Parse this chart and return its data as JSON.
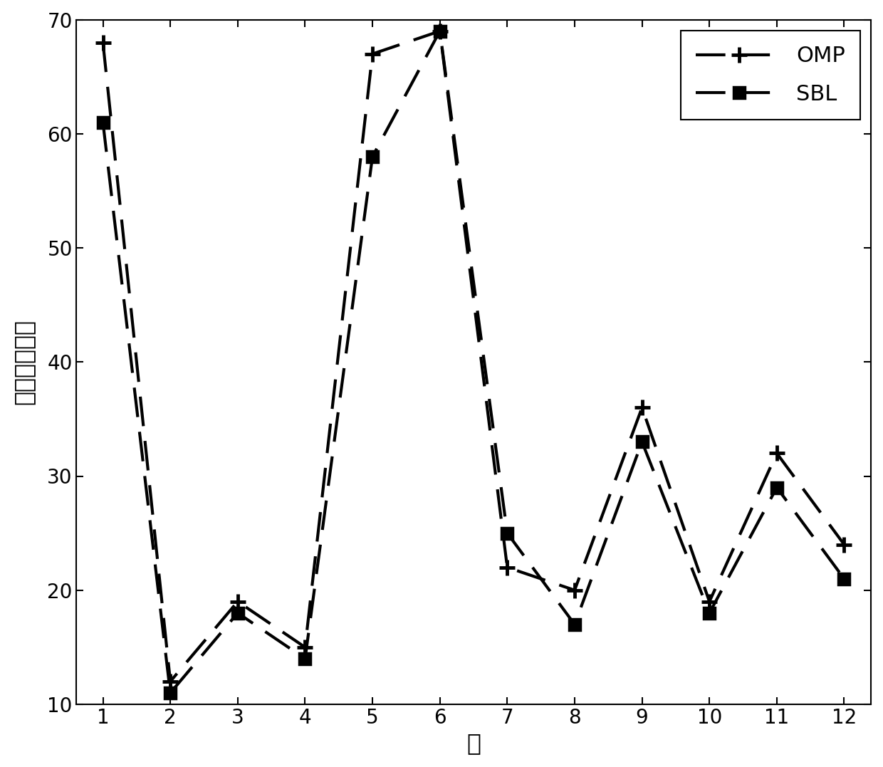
{
  "x": [
    1,
    2,
    3,
    4,
    5,
    6,
    7,
    8,
    9,
    10,
    11,
    12
  ],
  "omp_y": [
    68,
    12,
    19,
    15,
    67,
    69,
    22,
    20,
    36,
    19,
    32,
    24
  ],
  "sbl_y": [
    61,
    11,
    18,
    14,
    58,
    69,
    25,
    17,
    33,
    18,
    29,
    21
  ],
  "xlabel": "帧",
  "ylabel": "有效噪声方差",
  "ylim": [
    10,
    70
  ],
  "xlim": [
    0.6,
    12.4
  ],
  "yticks": [
    10,
    20,
    30,
    40,
    50,
    60,
    70
  ],
  "xticks": [
    1,
    2,
    3,
    4,
    5,
    6,
    7,
    8,
    9,
    10,
    11,
    12
  ],
  "line_color": "#000000",
  "legend_omp": "OMP",
  "legend_sbl": "SBL",
  "figsize": [
    12.4,
    10.77
  ],
  "dpi": 100
}
